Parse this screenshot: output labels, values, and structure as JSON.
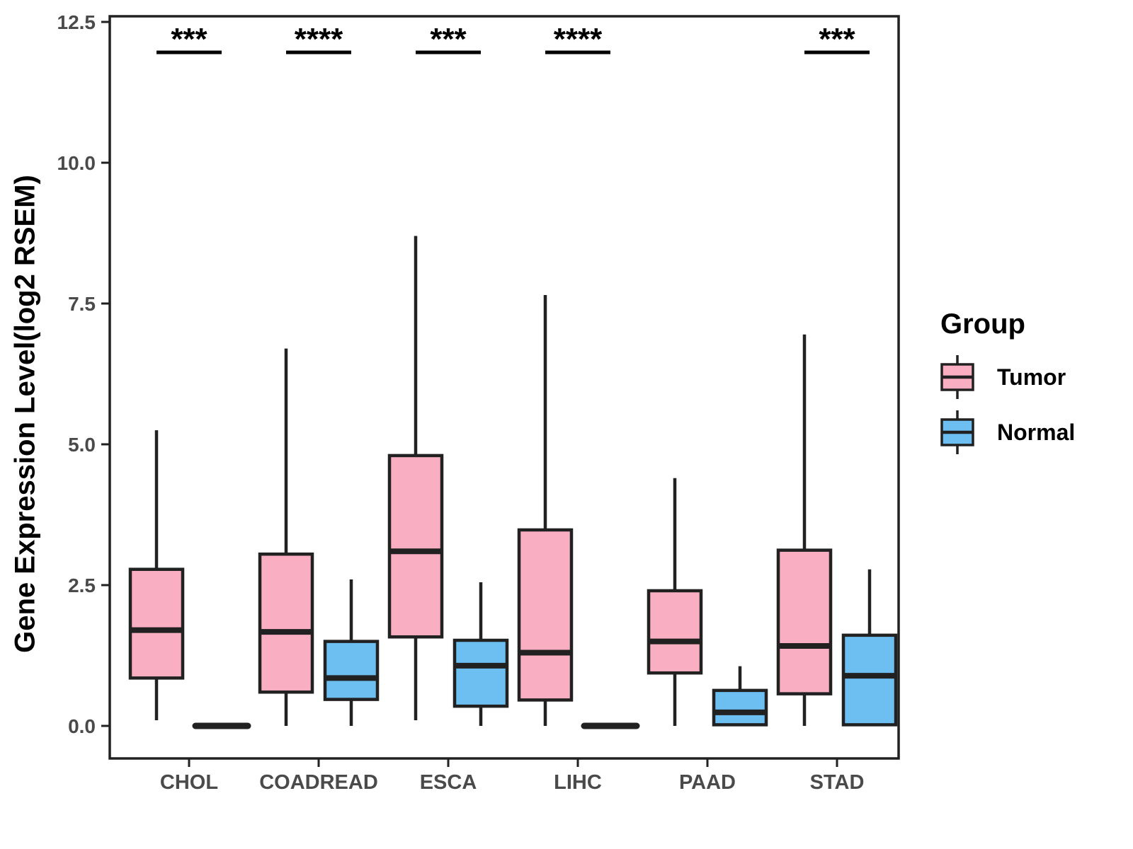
{
  "chart_data": {
    "type": "grouped_boxplot",
    "title": "",
    "xlabel": "",
    "ylabel": "Gene Expression Level(log2 RSEM)",
    "categories": [
      "CHOL",
      "COADREAD",
      "ESCA",
      "LIHC",
      "PAAD",
      "STAD"
    ],
    "y_ticks": [
      0.0,
      2.5,
      5.0,
      7.5,
      10.0,
      12.5
    ],
    "y_tick_labels": [
      "0.0",
      "2.5",
      "5.0",
      "7.5",
      "10.0",
      "12.5"
    ],
    "ylim": [
      -0.6,
      12.65
    ],
    "grid": "off",
    "legend": {
      "title": "Group",
      "position": "right"
    },
    "groups": [
      {
        "name": "Tumor",
        "fill": "#F9AEC1",
        "stroke": "#212121"
      },
      {
        "name": "Normal",
        "fill": "#6DBFF2",
        "stroke": "#212121"
      }
    ],
    "series": [
      {
        "category": "CHOL",
        "significance": "***",
        "boxes": [
          {
            "group": "Tumor",
            "whisker_low": 0.1,
            "q1": 0.85,
            "median": 1.7,
            "q3": 2.78,
            "whisker_high": 5.25
          },
          {
            "group": "Normal",
            "whisker_low": 0.0,
            "q1": 0.0,
            "median": 0.0,
            "q3": 0.0,
            "whisker_high": 0.0
          }
        ]
      },
      {
        "category": "COADREAD",
        "significance": "****",
        "boxes": [
          {
            "group": "Tumor",
            "whisker_low": 0.0,
            "q1": 0.6,
            "median": 1.67,
            "q3": 3.05,
            "whisker_high": 6.7
          },
          {
            "group": "Normal",
            "whisker_low": 0.0,
            "q1": 0.47,
            "median": 0.85,
            "q3": 1.5,
            "whisker_high": 2.6
          }
        ]
      },
      {
        "category": "ESCA",
        "significance": "***",
        "boxes": [
          {
            "group": "Tumor",
            "whisker_low": 0.1,
            "q1": 1.58,
            "median": 3.1,
            "q3": 4.8,
            "whisker_high": 8.7
          },
          {
            "group": "Normal",
            "whisker_low": 0.0,
            "q1": 0.35,
            "median": 1.07,
            "q3": 1.52,
            "whisker_high": 2.55
          }
        ]
      },
      {
        "category": "LIHC",
        "significance": "****",
        "boxes": [
          {
            "group": "Tumor",
            "whisker_low": 0.0,
            "q1": 0.46,
            "median": 1.3,
            "q3": 3.48,
            "whisker_high": 7.65
          },
          {
            "group": "Normal",
            "whisker_low": 0.0,
            "q1": 0.0,
            "median": 0.0,
            "q3": 0.0,
            "whisker_high": 0.0
          }
        ]
      },
      {
        "category": "PAAD",
        "significance": null,
        "boxes": [
          {
            "group": "Tumor",
            "whisker_low": 0.0,
            "q1": 0.94,
            "median": 1.5,
            "q3": 2.4,
            "whisker_high": 4.4
          },
          {
            "group": "Normal",
            "whisker_low": 0.0,
            "q1": 0.02,
            "median": 0.24,
            "q3": 0.63,
            "whisker_high": 1.06
          }
        ]
      },
      {
        "category": "STAD",
        "significance": "***",
        "boxes": [
          {
            "group": "Tumor",
            "whisker_low": 0.0,
            "q1": 0.57,
            "median": 1.42,
            "q3": 3.12,
            "whisker_high": 6.95
          },
          {
            "group": "Normal",
            "whisker_low": 0.0,
            "q1": 0.02,
            "median": 0.89,
            "q3": 1.61,
            "whisker_high": 2.78
          }
        ]
      }
    ]
  }
}
